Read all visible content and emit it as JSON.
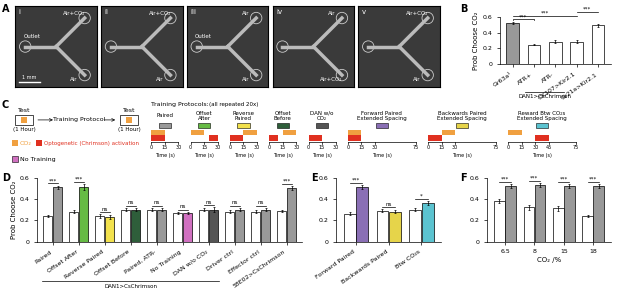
{
  "panel_labels": [
    "A",
    "B",
    "C",
    "D",
    "E",
    "F"
  ],
  "images": {
    "scale_bar": "1 mm",
    "panels": [
      {
        "label": "i",
        "texts": [
          "Air+CO₂",
          "Outlet",
          "Air"
        ]
      },
      {
        "label": "ii",
        "texts": [
          "Air+CO₂",
          "Air"
        ]
      },
      {
        "label": "iii",
        "texts": [
          "Air",
          "Outlet",
          "Air"
        ]
      },
      {
        "label": "iv",
        "texts": [
          "Air",
          "Air+CO₂"
        ]
      },
      {
        "label": "v",
        "texts": [
          "Air+CO₂",
          "Air"
        ]
      }
    ]
  },
  "diagram": {
    "test": "Test",
    "training": "Training Protocol",
    "duration": "(1 Hour)",
    "co2_legend": "CO₂",
    "co2_color": "#f0a040",
    "light_legend": "Optogenetic (Chrimson) activation",
    "light_color": "#e03020",
    "protocols_title": "Training Protocols:",
    "protocols_note": "(all repeated 20x)",
    "no_training": {
      "name": "No Training",
      "color": "#d070c0"
    },
    "time_label": "Time (s)",
    "protocols": [
      {
        "name": "Paired",
        "color": "#999999",
        "co2": [
          [
            0,
            15
          ]
        ],
        "light": [
          [
            0,
            15
          ]
        ],
        "xticks": [
          0,
          15,
          30
        ]
      },
      {
        "name": "Offset After",
        "color": "#66bb44",
        "co2": [
          [
            0,
            15
          ]
        ],
        "light": [
          [
            20,
            30
          ]
        ],
        "xticks": [
          0,
          15,
          30
        ]
      },
      {
        "name": "Reverse Paired",
        "color": "#f2e14c",
        "co2": [
          [
            15,
            30
          ]
        ],
        "light": [
          [
            0,
            15
          ]
        ],
        "xticks": [
          0,
          15,
          30
        ]
      },
      {
        "name": "Offset Before",
        "color": "#2e5e3a",
        "co2": [
          [
            15,
            30
          ]
        ],
        "light": [
          [
            0,
            10
          ]
        ],
        "xticks": [
          0,
          15,
          30
        ]
      },
      {
        "name": "DAN w/o CO₂",
        "color": "#555555",
        "co2": [],
        "light": [
          [
            0,
            15
          ]
        ],
        "xticks": [
          0,
          15,
          30
        ]
      },
      {
        "name": "Forward Paired Extended Spacing",
        "color": "#8a6fb5",
        "co2": [
          [
            0,
            15
          ]
        ],
        "light": [
          [
            0,
            15
          ]
        ],
        "xticks": [
          0,
          15,
          30,
          75
        ]
      },
      {
        "name": "Backwards Paired Extended Spacing",
        "color": "#e6d44a",
        "co2": [
          [
            15,
            30
          ]
        ],
        "light": [
          [
            0,
            15
          ]
        ],
        "xticks": [
          0,
          15,
          30,
          75
        ]
      },
      {
        "name": "Reward Btw CO₂s Extended Spacing",
        "color": "#5bc3d0",
        "co2": [
          [
            0,
            15
          ]
        ],
        "light": [
          [
            30,
            45
          ]
        ],
        "xticks": [
          0,
          15,
          30,
          45,
          75
        ]
      }
    ]
  },
  "chart_data": [
    {
      "type": "bar",
      "ylabel": "Prob Choose CO₂",
      "categories": [
        "Gr63a¹",
        "ATR+",
        "ATR-",
        "OK107>Kir2.1",
        "Gr21a>Kir2.1"
      ],
      "values": [
        0.53,
        0.25,
        0.29,
        0.29,
        0.5
      ],
      "errors": [
        0.015,
        0.01,
        0.015,
        0.02,
        0.02
      ],
      "colors": [
        "#999999",
        "#ffffff",
        "#ffffff",
        "#ffffff",
        "#ffffff"
      ],
      "ylim": [
        0,
        0.6
      ],
      "yticks": [
        0,
        0.2,
        0.4,
        0.6
      ],
      "group": {
        "label": "DAN1>CsChrimson",
        "from": 1,
        "to": 2
      },
      "significance": [
        {
          "from": 0,
          "to": 1,
          "label": "***"
        },
        {
          "from": 0,
          "to": 3,
          "label": "***"
        },
        {
          "from": 3,
          "to": 4,
          "label": "***"
        }
      ]
    },
    {
      "type": "grouped_bar",
      "ylabel": "Prob Choose CO₂",
      "categories": [
        "Paired",
        "Offset After",
        "Reverse Paired",
        "Offset Before",
        "Paired, ATR-",
        "No Training",
        "DAN w/o CO₂",
        "Driver ctrl",
        "Effector ctrl",
        "58E02>CsChrimson"
      ],
      "series": [
        {
          "color": "#ffffff",
          "values": [
            0.24,
            0.28,
            0.24,
            0.3,
            0.3,
            0.27,
            0.3,
            0.28,
            0.28,
            0.29
          ],
          "errors": [
            0.01,
            0.015,
            0.015,
            0.015,
            0.015,
            0.01,
            0.015,
            0.015,
            0.015,
            0.01
          ]
        },
        {
          "colors": [
            "#999999",
            "#66bb44",
            "#f2e14c",
            "#2e5e3a",
            "#999999",
            "#d070c0",
            "#555555",
            "#999999",
            "#999999",
            "#999999"
          ],
          "values": [
            0.51,
            0.51,
            0.23,
            0.3,
            0.3,
            0.27,
            0.3,
            0.3,
            0.3,
            0.5
          ],
          "errors": [
            0.015,
            0.03,
            0.02,
            0.015,
            0.015,
            0.01,
            0.02,
            0.015,
            0.015,
            0.02
          ]
        }
      ],
      "ylim": [
        0,
        0.6
      ],
      "yticks": [
        0,
        0.2,
        0.4,
        0.6
      ],
      "group": {
        "label": "DAN1>CsChrimson",
        "from": 0,
        "to": 6
      },
      "significance": [
        "***",
        "***",
        "ns",
        "ns",
        "ns",
        "ns",
        "ns",
        "ns",
        "ns",
        "***"
      ]
    },
    {
      "type": "grouped_bar",
      "categories": [
        "Forward Paired",
        "Backwards Paired",
        "Btw CO₂s"
      ],
      "series": [
        {
          "color": "#ffffff",
          "values": [
            0.26,
            0.29,
            0.3
          ],
          "errors": [
            0.015,
            0.015,
            0.015
          ]
        },
        {
          "colors": [
            "#8a6fb5",
            "#e6d44a",
            "#5bc3d0"
          ],
          "values": [
            0.51,
            0.28,
            0.36
          ],
          "errors": [
            0.02,
            0.015,
            0.02
          ]
        }
      ],
      "ylim": [
        0,
        0.6
      ],
      "yticks": [
        0,
        0.2,
        0.4,
        0.6
      ],
      "significance": [
        "***",
        "ns",
        "*"
      ]
    },
    {
      "type": "grouped_bar",
      "xlabel": "CO₂ /%",
      "categories": [
        "6.5",
        "8",
        "15",
        "18"
      ],
      "series": [
        {
          "color": "#ffffff",
          "values": [
            0.38,
            0.32,
            0.31,
            0.24
          ],
          "errors": [
            0.015,
            0.02,
            0.02,
            0.01
          ]
        },
        {
          "colors": [
            "#999999",
            "#999999",
            "#999999",
            "#999999"
          ],
          "values": [
            0.52,
            0.53,
            0.52,
            0.52
          ],
          "errors": [
            0.02,
            0.02,
            0.02,
            0.015
          ]
        }
      ],
      "ylim": [
        0,
        0.6
      ],
      "yticks": [
        0,
        0.2,
        0.4,
        0.6
      ],
      "significance": [
        "***",
        "***",
        "***",
        "***"
      ]
    }
  ]
}
